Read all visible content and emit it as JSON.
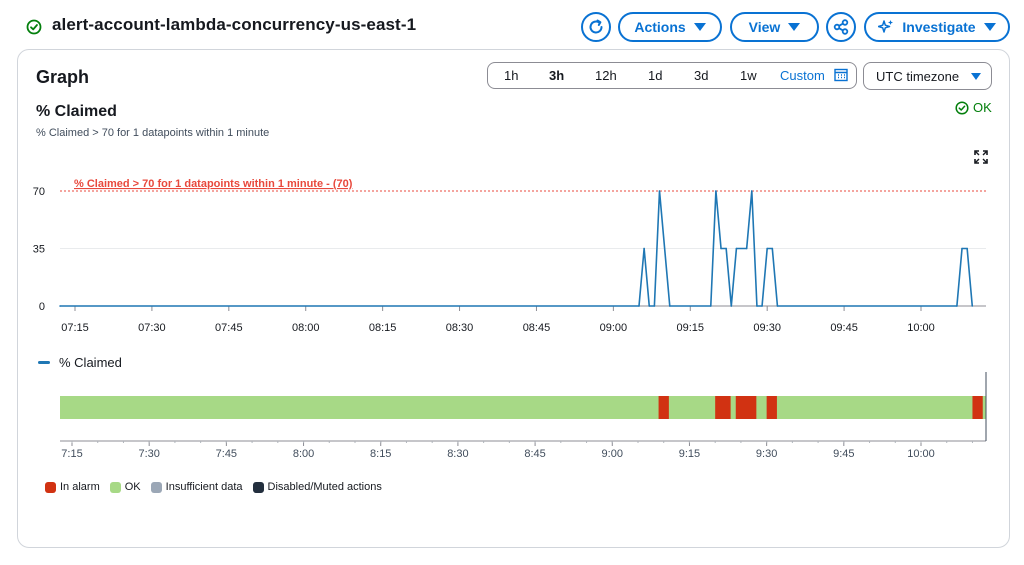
{
  "header": {
    "title": "alert-account-lambda-concurrency-us-east-1",
    "actions_label": "Actions",
    "view_label": "View",
    "investigate_label": "Investigate"
  },
  "graph": {
    "heading": "Graph",
    "ranges": [
      "1h",
      "3h",
      "12h",
      "1d",
      "3d",
      "1w"
    ],
    "active_range": "3h",
    "custom_label": "Custom",
    "timezone": "UTC timezone"
  },
  "metric": {
    "title": "% Claimed",
    "description": "% Claimed > 70 for 1 datapoints within 1 minute",
    "status": "OK",
    "threshold_label": "% Claimed > 70 for 1 datapoints within 1 minute - (70)",
    "legend_label": "% Claimed"
  },
  "chart_data": {
    "type": "line",
    "x_ticks": [
      "07:15",
      "07:30",
      "07:45",
      "08:00",
      "08:15",
      "08:30",
      "08:45",
      "09:00",
      "09:15",
      "09:30",
      "09:45",
      "10:00"
    ],
    "y_ticks": [
      0,
      35,
      70
    ],
    "ylim": [
      0,
      70
    ],
    "threshold": 70,
    "series": [
      {
        "name": "% Claimed",
        "color": "#1f77b4",
        "points": [
          [
            "07:12",
            0
          ],
          [
            "09:05",
            0
          ],
          [
            "09:06",
            35
          ],
          [
            "09:07",
            0
          ],
          [
            "09:08",
            0
          ],
          [
            "09:09",
            70
          ],
          [
            "09:11",
            0
          ],
          [
            "09:19",
            0
          ],
          [
            "09:20",
            70
          ],
          [
            "09:21",
            35
          ],
          [
            "09:22",
            35
          ],
          [
            "09:23",
            0
          ],
          [
            "09:24",
            35
          ],
          [
            "09:26",
            35
          ],
          [
            "09:27",
            70
          ],
          [
            "09:28",
            0
          ],
          [
            "09:29",
            0
          ],
          [
            "09:30",
            35
          ],
          [
            "09:31",
            35
          ],
          [
            "09:32",
            0
          ],
          [
            "10:07",
            0
          ],
          [
            "10:08",
            35
          ],
          [
            "10:09",
            35
          ],
          [
            "10:10",
            0
          ]
        ]
      }
    ]
  },
  "state_timeline": {
    "x_ticks": [
      "7:15",
      "7:30",
      "7:45",
      "8:00",
      "8:15",
      "8:30",
      "8:45",
      "9:00",
      "9:15",
      "9:30",
      "9:45",
      "10:00"
    ],
    "alarm_ranges": [
      [
        "09:09",
        "09:11"
      ],
      [
        "09:20",
        "09:23"
      ],
      [
        "09:24",
        "09:28"
      ],
      [
        "09:30",
        "09:32"
      ],
      [
        "10:10",
        "10:12"
      ]
    ],
    "colors": {
      "alarm": "#d13212",
      "ok": "#a7d986",
      "insufficient": "#9ba7b6",
      "disabled": "#232f3e"
    },
    "legend": [
      "In alarm",
      "OK",
      "Insufficient data",
      "Disabled/Muted actions"
    ]
  }
}
